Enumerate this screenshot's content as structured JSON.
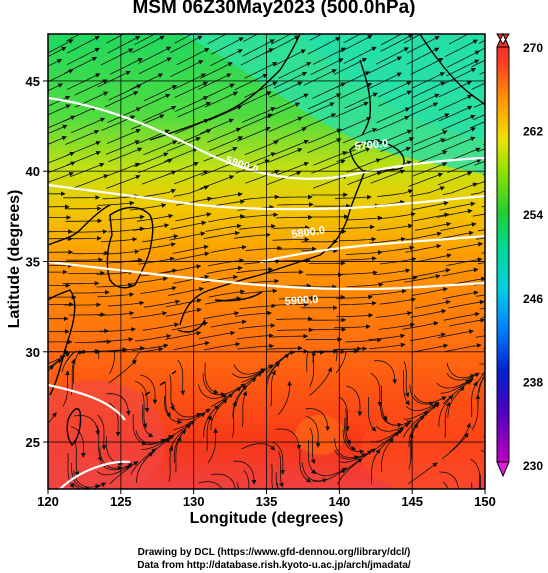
{
  "title": "MSM 06Z30May2023 (500.0hPa)",
  "x_axis": {
    "title": "Longitude (degrees)",
    "ticks": [
      "120",
      "125",
      "130",
      "135",
      "140",
      "145",
      "150"
    ],
    "min": 120,
    "max": 150
  },
  "y_axis": {
    "title": "Latitude  (degrees)",
    "ticks": [
      "25",
      "30",
      "35",
      "40",
      "45"
    ],
    "min": 22.4,
    "max": 47.6
  },
  "colorbar": {
    "labels": [
      "270",
      "262",
      "254",
      "246",
      "238",
      "230"
    ],
    "min": 230,
    "max": 270,
    "colors": [
      "#c000c0",
      "#2000c0",
      "#0060ff",
      "#00c0e0",
      "#00d8a0",
      "#20d030",
      "#a0e000",
      "#f0e000",
      "#ffa000",
      "#ff5000",
      "#f03020"
    ]
  },
  "contours": {
    "label": "5700.0",
    "labels": [
      "5700.0",
      "5800.0",
      "5800.0",
      "5900.0"
    ],
    "color": "#ffffff"
  },
  "footer": {
    "drawing": "Drawing by DCL (https://www.gfd-dennou.org/library/dcl/)",
    "data": "Data from http://database.rish.kyoto-u.ac.jp/arch/jmadata/"
  },
  "colors": {
    "coast": "#000000",
    "streamline": "#111111"
  }
}
